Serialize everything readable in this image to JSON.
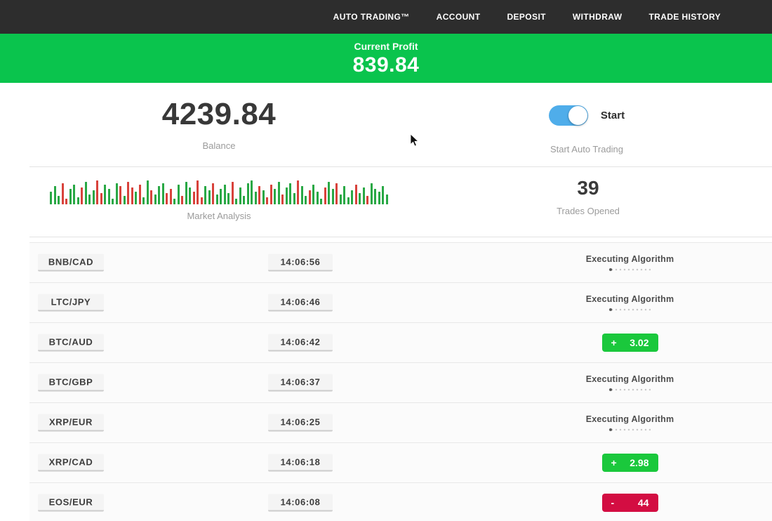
{
  "nav": {
    "items": [
      "AUTO TRADING™",
      "ACCOUNT",
      "DEPOSIT",
      "WITHDRAW",
      "TRADE HISTORY"
    ]
  },
  "profit_banner": {
    "label": "Current Profit",
    "value": "839.84"
  },
  "account": {
    "balance": "4239.84",
    "balance_label": "Balance",
    "auto_trading_on": true,
    "toggle_label": "Start",
    "toggle_caption": "Start Auto Trading"
  },
  "market": {
    "label": "Market Analysis",
    "trades_opened": "39",
    "trades_opened_label": "Trades Opened"
  },
  "trades": [
    {
      "pair": "BNB/CAD",
      "time": "14:06:56",
      "status": "executing",
      "status_label": "Executing Algorithm"
    },
    {
      "pair": "LTC/JPY",
      "time": "14:06:46",
      "status": "executing",
      "status_label": "Executing Algorithm"
    },
    {
      "pair": "BTC/AUD",
      "time": "14:06:42",
      "status": "profit",
      "result_sign": "+",
      "result_value": "3.02"
    },
    {
      "pair": "BTC/GBP",
      "time": "14:06:37",
      "status": "executing",
      "status_label": "Executing Algorithm"
    },
    {
      "pair": "XRP/EUR",
      "time": "14:06:25",
      "status": "executing",
      "status_label": "Executing Algorithm"
    },
    {
      "pair": "XRP/CAD",
      "time": "14:06:18",
      "status": "profit",
      "result_sign": "+",
      "result_value": "2.98"
    },
    {
      "pair": "EOS/EUR",
      "time": "14:06:08",
      "status": "loss",
      "result_sign": "-",
      "result_value": "44"
    }
  ],
  "colors": {
    "nav_bg": "#2d2d2d",
    "banner_green": "#0ac44d",
    "profit_green": "#1ac83c",
    "loss_red": "#d30d42",
    "toggle_blue": "#4fadea",
    "bar_green": "#29a845",
    "bar_red": "#d8423b"
  },
  "chart_data": {
    "type": "bar",
    "title": "Market Analysis",
    "xlabel": "",
    "ylabel": "",
    "description": "decorative mini price-bar strip; values are bar heights in px with g=green up / r=red down",
    "bars": [
      [
        18,
        "g"
      ],
      [
        26,
        "g"
      ],
      [
        12,
        "g"
      ],
      [
        30,
        "r"
      ],
      [
        8,
        "r"
      ],
      [
        22,
        "g"
      ],
      [
        28,
        "g"
      ],
      [
        10,
        "g"
      ],
      [
        24,
        "r"
      ],
      [
        32,
        "g"
      ],
      [
        14,
        "g"
      ],
      [
        20,
        "g"
      ],
      [
        34,
        "r"
      ],
      [
        16,
        "r"
      ],
      [
        28,
        "g"
      ],
      [
        22,
        "g"
      ],
      [
        8,
        "g"
      ],
      [
        30,
        "g"
      ],
      [
        26,
        "r"
      ],
      [
        12,
        "g"
      ],
      [
        32,
        "r"
      ],
      [
        24,
        "r"
      ],
      [
        18,
        "g"
      ],
      [
        28,
        "r"
      ],
      [
        10,
        "g"
      ],
      [
        34,
        "g"
      ],
      [
        20,
        "r"
      ],
      [
        14,
        "g"
      ],
      [
        26,
        "g"
      ],
      [
        30,
        "g"
      ],
      [
        16,
        "r"
      ],
      [
        22,
        "r"
      ],
      [
        8,
        "g"
      ],
      [
        28,
        "g"
      ],
      [
        12,
        "r"
      ],
      [
        32,
        "g"
      ],
      [
        24,
        "g"
      ],
      [
        18,
        "r"
      ],
      [
        34,
        "r"
      ],
      [
        10,
        "r"
      ],
      [
        26,
        "g"
      ],
      [
        20,
        "g"
      ],
      [
        30,
        "r"
      ],
      [
        14,
        "g"
      ],
      [
        22,
        "g"
      ],
      [
        28,
        "g"
      ],
      [
        16,
        "g"
      ],
      [
        32,
        "r"
      ],
      [
        8,
        "g"
      ],
      [
        24,
        "g"
      ],
      [
        12,
        "g"
      ],
      [
        30,
        "g"
      ],
      [
        34,
        "g"
      ],
      [
        18,
        "g"
      ],
      [
        26,
        "r"
      ],
      [
        20,
        "g"
      ],
      [
        10,
        "r"
      ],
      [
        28,
        "r"
      ],
      [
        22,
        "g"
      ],
      [
        32,
        "g"
      ],
      [
        14,
        "r"
      ],
      [
        24,
        "g"
      ],
      [
        30,
        "g"
      ],
      [
        16,
        "g"
      ],
      [
        34,
        "r"
      ],
      [
        26,
        "g"
      ],
      [
        12,
        "g"
      ],
      [
        20,
        "r"
      ],
      [
        28,
        "g"
      ],
      [
        18,
        "g"
      ],
      [
        8,
        "g"
      ],
      [
        24,
        "r"
      ],
      [
        32,
        "g"
      ],
      [
        22,
        "g"
      ],
      [
        30,
        "r"
      ],
      [
        14,
        "g"
      ],
      [
        26,
        "g"
      ],
      [
        10,
        "g"
      ],
      [
        20,
        "g"
      ],
      [
        28,
        "r"
      ],
      [
        16,
        "g"
      ],
      [
        24,
        "g"
      ],
      [
        12,
        "r"
      ],
      [
        30,
        "g"
      ],
      [
        22,
        "g"
      ],
      [
        18,
        "g"
      ],
      [
        26,
        "g"
      ],
      [
        14,
        "g"
      ]
    ]
  }
}
